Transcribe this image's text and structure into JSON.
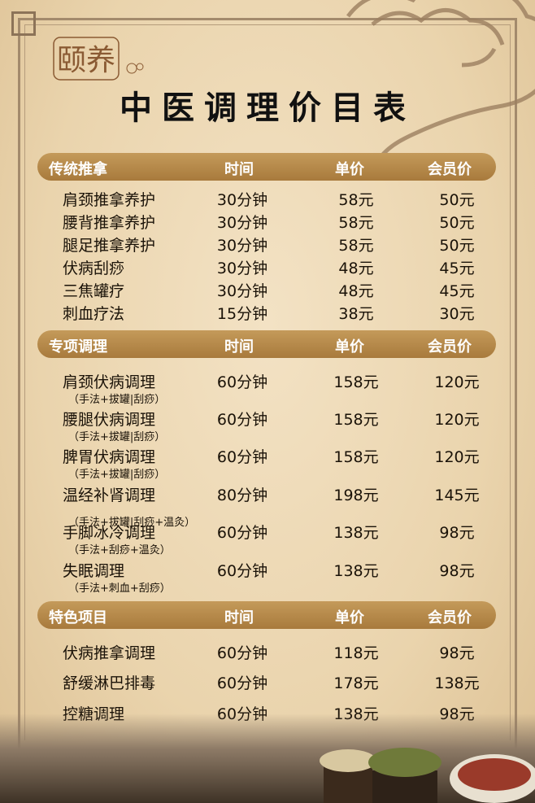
{
  "logo": {
    "text": "颐养"
  },
  "title": "中医调理价目表",
  "columns": {
    "time": "时间",
    "price": "单价",
    "member": "会员价"
  },
  "sections": [
    {
      "name": "传统推拿",
      "items": [
        {
          "name": "肩颈推拿养护",
          "time": "30分钟",
          "price": "58元",
          "member": "50元"
        },
        {
          "name": "腰背推拿养护",
          "time": "30分钟",
          "price": "58元",
          "member": "50元"
        },
        {
          "name": "腿足推拿养护",
          "time": "30分钟",
          "price": "58元",
          "member": "50元"
        },
        {
          "name": "伏病刮痧",
          "time": "30分钟",
          "price": "48元",
          "member": "45元"
        },
        {
          "name": "三焦罐疗",
          "time": "30分钟",
          "price": "48元",
          "member": "45元"
        },
        {
          "name": "刺血疗法",
          "time": "15分钟",
          "price": "38元",
          "member": "30元"
        }
      ]
    },
    {
      "name": "专项调理",
      "items": [
        {
          "name": "肩颈伏病调理",
          "note": "（手法+拔罐|刮痧）",
          "time": "60分钟",
          "price": "158元",
          "member": "120元"
        },
        {
          "name": "腰腿伏病调理",
          "note": "（手法+拔罐|刮痧）",
          "time": "60分钟",
          "price": "158元",
          "member": "120元"
        },
        {
          "name": "脾胃伏病调理",
          "note": "（手法+拔罐|刮痧）",
          "time": "60分钟",
          "price": "158元",
          "member": "120元"
        },
        {
          "name": "温经补肾调理",
          "note": "（手法+拔罐|刮痧+温灸）",
          "time": "80分钟",
          "price": "198元",
          "member": "145元"
        },
        {
          "name": "手脚冰冷调理",
          "note": "（手法+刮痧+温灸）",
          "time": "60分钟",
          "price": "138元",
          "member": "98元"
        },
        {
          "name": "失眠调理",
          "note": "（手法+刺血+刮痧）",
          "time": "60分钟",
          "price": "138元",
          "member": "98元"
        }
      ]
    },
    {
      "name": "特色项目",
      "items": [
        {
          "name": "伏病推拿调理",
          "time": "60分钟",
          "price": "118元",
          "member": "98元"
        },
        {
          "name": "舒缓淋巴排毒",
          "time": "60分钟",
          "price": "178元",
          "member": "138元"
        },
        {
          "name": "控糖调理",
          "time": "60分钟",
          "price": "138元",
          "member": "98元"
        }
      ]
    }
  ],
  "colors": {
    "header_bar": "#b58a4a",
    "background": "#ead4ad",
    "text": "#1a1208"
  }
}
